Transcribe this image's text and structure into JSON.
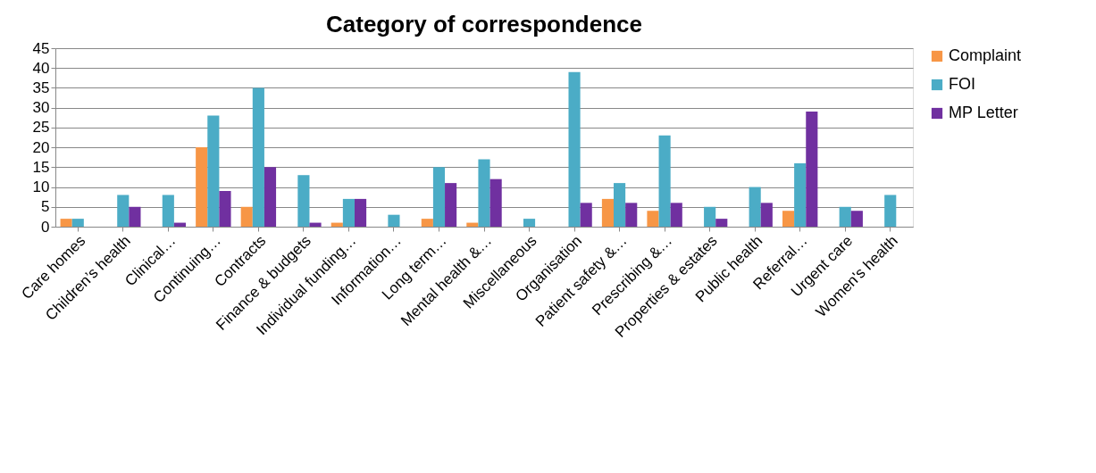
{
  "chart_data": {
    "type": "bar",
    "title": "Category of correspondence",
    "categories": [
      "Care homes",
      "Children’s health",
      "Clinical…",
      "Continuing…",
      "Contracts",
      "Finance & budgets",
      "Individual funding…",
      "Information…",
      "Long term…",
      "Mental health &…",
      "Miscellaneous",
      "Organisation",
      "Patient safety &…",
      "Prescribing &…",
      "Properties & estates",
      "Public health",
      "Referral…",
      "Urgent care",
      "Women's health"
    ],
    "series": [
      {
        "name": "Complaint",
        "color": "#f79646",
        "values": [
          2,
          0,
          0,
          20,
          5,
          0,
          1,
          0,
          2,
          1,
          0,
          0,
          7,
          4,
          0,
          0,
          4,
          0,
          0
        ]
      },
      {
        "name": "FOI",
        "color": "#4bacc6",
        "values": [
          2,
          8,
          8,
          28,
          35,
          13,
          7,
          3,
          15,
          17,
          2,
          39,
          11,
          23,
          5,
          10,
          16,
          5,
          8
        ]
      },
      {
        "name": "MP Letter",
        "color": "#7030a0",
        "values": [
          0,
          5,
          1,
          9,
          15,
          1,
          7,
          0,
          11,
          12,
          0,
          6,
          6,
          6,
          2,
          6,
          29,
          4,
          0
        ]
      }
    ],
    "ylim": [
      0,
      45
    ],
    "yticks": [
      0,
      5,
      10,
      15,
      20,
      25,
      30,
      35,
      40,
      45
    ],
    "grid": "y",
    "legend": "right"
  }
}
